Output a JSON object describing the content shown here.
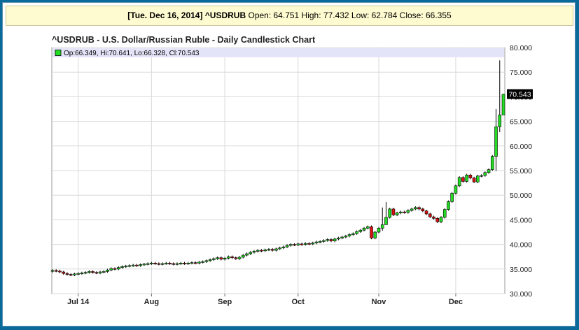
{
  "header": {
    "date_symbol": "[Tue. Dec 16, 2014] ^USDRUB",
    "ohlc": "Open: 64.751 High: 77.432 Low: 62.784 Close: 66.355"
  },
  "chart_data": {
    "type": "candlestick",
    "title": "^USDRUB - U.S. Dollar/Russian Ruble - Daily Candlestick Chart",
    "legend_text": "Op:66.349, Hi:70.641, Lo:66.328, Cl:70.543",
    "last_price_label": "70.543",
    "last_price": 70.543,
    "ylim": [
      30,
      80
    ],
    "y_ticks": [
      "80.000",
      "75.000",
      "70.000",
      "65.000",
      "60.000",
      "55.000",
      "50.000",
      "45.000",
      "40.000",
      "35.000",
      "30.000"
    ],
    "y_tick_values": [
      80,
      75,
      70,
      65,
      60,
      55,
      50,
      45,
      40,
      35,
      30
    ],
    "x_labels": [
      "Jul 14",
      "Aug",
      "Sep",
      "Oct",
      "Nov",
      "Dec"
    ],
    "x_label_indices": [
      7,
      27,
      47,
      67,
      89,
      110
    ],
    "grid": true,
    "legend_position": "top-left",
    "colors": {
      "up": "#22dd22",
      "down": "#dd1111",
      "wick": "#000000",
      "grid": "#d9d9d9",
      "legend_bg": "#e4e4f8"
    },
    "closes": [
      34.7,
      34.6,
      34.4,
      34.1,
      33.9,
      33.8,
      34.0,
      34.1,
      34.2,
      34.3,
      34.5,
      34.3,
      34.2,
      34.4,
      34.5,
      34.8,
      35.1,
      35.0,
      35.3,
      35.5,
      35.6,
      35.7,
      35.8,
      35.7,
      35.9,
      36.0,
      36.1,
      36.2,
      36.1,
      36.0,
      36.1,
      36.2,
      36.1,
      36.0,
      36.1,
      36.2,
      36.1,
      36.2,
      36.3,
      36.2,
      36.4,
      36.5,
      36.7,
      36.9,
      37.1,
      37.3,
      37.0,
      37.2,
      37.5,
      37.3,
      37.1,
      37.4,
      37.8,
      38.1,
      38.4,
      38.6,
      38.8,
      38.7,
      38.9,
      39.0,
      38.8,
      39.1,
      39.3,
      39.5,
      39.8,
      40.0,
      39.9,
      40.1,
      40.0,
      40.2,
      40.1,
      40.3,
      40.5,
      40.6,
      40.8,
      41.0,
      40.7,
      41.1,
      41.3,
      41.5,
      41.7,
      42.0,
      42.2,
      42.6,
      42.9,
      43.3,
      43.6,
      41.3,
      42.5,
      43.3,
      44.0,
      45.5,
      47.2,
      46.0,
      46.4,
      46.6,
      46.5,
      46.9,
      47.2,
      47.5,
      47.2,
      46.8,
      46.2,
      45.6,
      45.3,
      44.6,
      45.5,
      47.1,
      48.7,
      50.4,
      51.9,
      53.6,
      52.8,
      54.1,
      53.5,
      52.7,
      53.9,
      54.0,
      54.6,
      55.2,
      57.9,
      63.9,
      66.3,
      70.5
    ],
    "extremes": [
      {
        "i": 90,
        "high": 47.5,
        "low": 42.8
      },
      {
        "i": 91,
        "high": 48.6,
        "low": 44.5
      },
      {
        "i": 121,
        "high": 67.5,
        "low": 54.9
      },
      {
        "i": 122,
        "high": 77.4,
        "low": 62.8
      },
      {
        "i": 123,
        "high": 70.6,
        "low": 66.3
      }
    ]
  }
}
